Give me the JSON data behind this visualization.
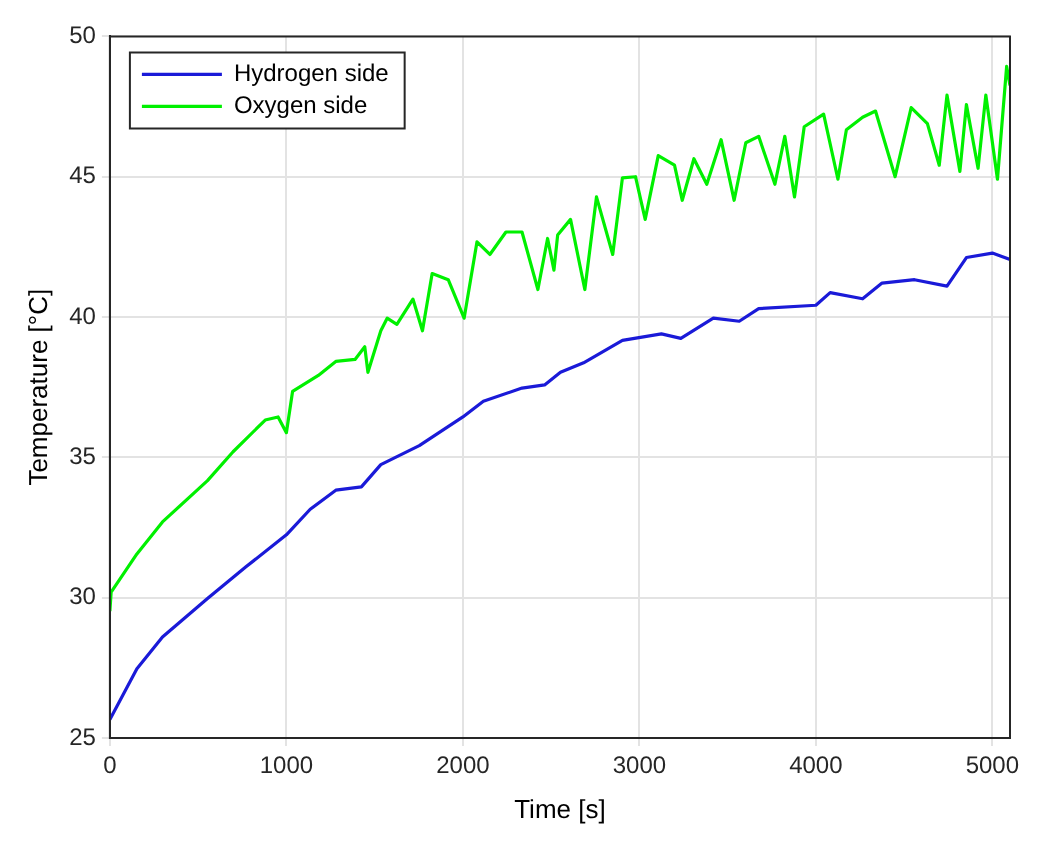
{
  "chart_data": {
    "type": "line",
    "xlabel": "Time [s]",
    "ylabel": "Temperature [°C]",
    "xlim": [
      0,
      5100
    ],
    "ylim": [
      25,
      50
    ],
    "xticks": [
      0,
      1000,
      2000,
      3000,
      4000,
      5000
    ],
    "yticks": [
      25,
      30,
      35,
      40,
      45,
      50
    ],
    "grid": true,
    "legend": "top left",
    "marker": "none",
    "line_style": "solid",
    "series": [
      {
        "name": "Hydrogen side",
        "color": "#1a1ad8",
        "x": [
          0,
          153,
          298,
          553,
          771,
          1000,
          1135,
          1280,
          1425,
          1535,
          1753,
          2000,
          2116,
          2335,
          2463,
          2553,
          2684,
          2904,
          3125,
          3235,
          3419,
          3566,
          3676,
          4000,
          4081,
          4265,
          4375,
          4559,
          4743,
          4853,
          5000,
          5100
        ],
        "values": [
          25.66,
          27.47,
          28.6,
          29.97,
          31.1,
          32.24,
          33.15,
          33.83,
          33.95,
          34.74,
          35.42,
          36.44,
          37.0,
          37.47,
          37.58,
          38.03,
          38.37,
          39.17,
          39.4,
          39.24,
          39.96,
          39.85,
          40.3,
          40.42,
          40.87,
          40.65,
          41.21,
          41.33,
          41.1,
          42.12,
          42.28,
          42.05
        ]
      },
      {
        "name": "Oxygen side",
        "color": "#00f000",
        "x": [
          0,
          7,
          153,
          298,
          553,
          698,
          880,
          953,
          1000,
          1035,
          1181,
          1280,
          1389,
          1444,
          1462,
          1535,
          1571,
          1626,
          1717,
          1771,
          1826,
          1917,
          2007,
          2080,
          2153,
          2244,
          2335,
          2425,
          2480,
          2516,
          2537,
          2610,
          2691,
          2757,
          2849,
          2904,
          2978,
          3033,
          3107,
          3199,
          3243,
          3309,
          3382,
          3463,
          3537,
          3603,
          3676,
          3768,
          3824,
          3879,
          3934,
          4044,
          4125,
          4173,
          4265,
          4338,
          4449,
          4540,
          4632,
          4699,
          4743,
          4816,
          4853,
          4919,
          4963,
          5029,
          5081,
          5100
        ],
        "values": [
          29.52,
          30.2,
          31.56,
          32.7,
          34.17,
          35.2,
          36.33,
          36.44,
          35.88,
          37.35,
          37.92,
          38.42,
          38.49,
          38.94,
          38.03,
          39.51,
          39.96,
          39.74,
          40.64,
          39.51,
          41.55,
          41.33,
          39.96,
          42.68,
          42.23,
          43.03,
          43.03,
          40.98,
          42.8,
          41.67,
          42.92,
          43.48,
          40.98,
          44.28,
          42.23,
          44.96,
          45.0,
          43.48,
          45.75,
          45.41,
          44.16,
          45.64,
          44.73,
          46.32,
          44.16,
          46.21,
          46.44,
          44.73,
          46.44,
          44.28,
          46.78,
          47.23,
          44.91,
          46.67,
          47.12,
          47.34,
          45.0,
          47.46,
          46.89,
          45.41,
          47.91,
          45.19,
          47.57,
          45.3,
          47.91,
          44.91,
          48.93,
          48.25
        ]
      }
    ]
  }
}
